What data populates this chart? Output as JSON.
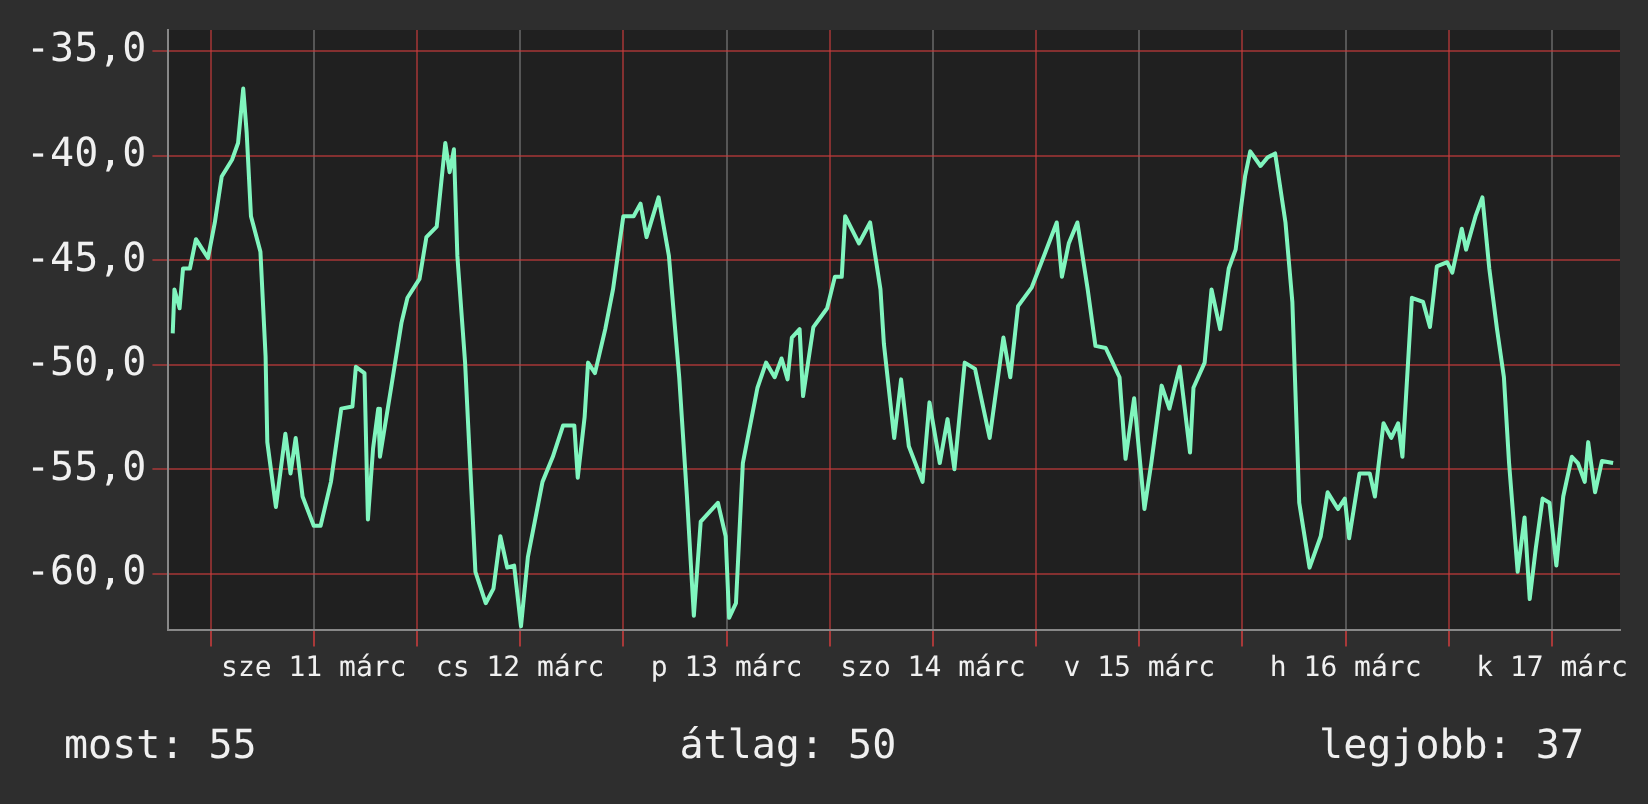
{
  "chart_data": {
    "type": "line",
    "x": [
      "--03-10T19:36",
      "--03-10T19:48",
      "--03-10T20:24",
      "--03-10T20:48",
      "--03-10T21:36",
      "--03-10T22:18",
      "--03-10T23:42",
      "--03-11T00:30",
      "--03-11T01:18",
      "--03-11T02:30",
      "--03-11T03:12",
      "--03-11T03:48",
      "--03-11T04:12",
      "--03-11T04:42",
      "--03-11T05:48",
      "--03-11T06:24",
      "--03-11T06:36",
      "--03-11T07:36",
      "--03-11T08:42",
      "--03-11T09:18",
      "--03-11T09:54",
      "--03-11T10:42",
      "--03-11T12:00",
      "--03-11T12:48",
      "--03-11T14:00",
      "--03-11T15:12",
      "--03-11T16:30",
      "--03-11T16:54",
      "--03-11T17:54",
      "--03-11T18:18",
      "--03-11T18:54",
      "--03-11T19:30",
      "--03-11T19:42",
      "--03-11T21:00",
      "--03-11T22:12",
      "--03-11T22:54",
      "--03-12T00:18",
      "--03-12T01:06",
      "--03-12T02:18",
      "--03-12T03:18",
      "--03-12T03:48",
      "--03-12T04:18",
      "--03-12T04:42",
      "--03-12T05:36",
      "--03-12T06:48",
      "--03-12T08:00",
      "--03-12T08:54",
      "--03-12T09:42",
      "--03-12T10:30",
      "--03-12T11:18",
      "--03-12T12:06",
      "--03-12T12:54",
      "--03-12T14:36",
      "--03-12T15:48",
      "--03-12T17:00",
      "--03-12T18:18",
      "--03-12T18:42",
      "--03-12T19:30",
      "--03-12T19:54",
      "--03-12T20:42",
      "--03-12T21:54",
      "--03-12T22:48",
      "--03-13T00:00",
      "--03-13T01:12",
      "--03-13T02:00",
      "--03-13T02:42",
      "--03-13T04:06",
      "--03-13T05:18",
      "--03-13T06:30",
      "--03-13T07:24",
      "--03-13T08:12",
      "--03-13T09:00",
      "--03-13T11:00",
      "--03-13T11:54",
      "--03-13T12:18",
      "--03-13T13:06",
      "--03-13T13:54",
      "--03-13T15:36",
      "--03-13T16:36",
      "--03-13T17:36",
      "--03-13T18:24",
      "--03-13T19:06",
      "--03-13T19:36",
      "--03-13T20:30",
      "--03-13T20:54",
      "--03-13T22:06",
      "--03-13T23:42",
      "--03-14T00:36",
      "--03-14T01:24",
      "--03-14T01:48",
      "--03-14T03:24",
      "--03-14T04:42",
      "--03-14T05:54",
      "--03-14T06:18",
      "--03-14T07:06",
      "--03-14T07:30",
      "--03-14T08:18",
      "--03-14T09:12",
      "--03-14T10:48",
      "--03-14T11:36",
      "--03-14T12:48",
      "--03-14T13:42",
      "--03-14T14:30",
      "--03-14T15:42",
      "--03-14T16:54",
      "--03-14T18:36",
      "--03-14T20:12",
      "--03-14T21:00",
      "--03-14T21:54",
      "--03-14T23:30",
      "--03-15T01:06",
      "--03-15T02:24",
      "--03-15T03:00",
      "--03-15T03:48",
      "--03-15T04:48",
      "--03-15T06:00",
      "--03-15T06:54",
      "--03-15T08:06",
      "--03-15T08:54",
      "--03-15T09:42",
      "--03-15T10:24",
      "--03-15T11:24",
      "--03-15T12:36",
      "--03-15T13:24",
      "--03-15T14:36",
      "--03-15T15:30",
      "--03-15T16:42",
      "--03-15T17:54",
      "--03-15T18:18",
      "--03-15T19:36",
      "--03-15T20:24",
      "--03-15T21:24",
      "--03-15T22:24",
      "--03-15T23:12",
      "--03-15T23:42",
      "--03-16T00:18",
      "--03-16T00:54",
      "--03-16T02:06",
      "--03-16T02:54",
      "--03-16T03:48",
      "--03-16T05:00",
      "--03-16T05:48",
      "--03-16T06:36",
      "--03-16T07:48",
      "--03-16T09:06",
      "--03-16T09:54",
      "--03-16T11:06",
      "--03-16T11:54",
      "--03-16T12:24",
      "--03-16T13:36",
      "--03-16T14:48",
      "--03-16T15:24",
      "--03-16T16:24",
      "--03-16T17:18",
      "--03-16T18:06",
      "--03-16T18:36",
      "--03-16T19:42",
      "--03-16T21:00",
      "--03-16T21:48",
      "--03-16T22:36",
      "--03-16T23:48",
      "--03-17T00:24",
      "--03-17T01:30",
      "--03-17T02:00",
      "--03-17T03:06",
      "--03-17T03:54",
      "--03-17T04:42",
      "--03-17T05:36",
      "--03-17T06:24",
      "--03-17T07:00",
      "--03-17T08:00",
      "--03-17T08:48",
      "--03-17T09:24",
      "--03-17T10:06",
      "--03-17T10:54",
      "--03-17T11:42",
      "--03-17T12:30",
      "--03-17T13:18",
      "--03-17T14:18",
      "--03-17T15:00",
      "--03-17T15:48",
      "--03-17T16:12",
      "--03-17T17:00",
      "--03-17T17:48",
      "--03-17T19:06"
    ],
    "series": [
      {
        "color": "#80f5be",
        "values": [
          -48.5,
          -46.4,
          -47.3,
          -45.4,
          -45.4,
          -44.0,
          -44.9,
          -43.2,
          -41.0,
          -40.2,
          -39.4,
          -36.8,
          -38.9,
          -42.9,
          -44.6,
          -49.6,
          -53.7,
          -56.8,
          -53.3,
          -55.2,
          -53.5,
          -56.3,
          -57.7,
          -57.7,
          -55.6,
          -52.1,
          -52.0,
          -50.1,
          -50.4,
          -57.4,
          -54.0,
          -52.1,
          -54.4,
          -51.1,
          -48.0,
          -46.8,
          -45.9,
          -43.9,
          -43.4,
          -39.4,
          -40.8,
          -39.7,
          -44.8,
          -49.9,
          -59.9,
          -61.4,
          -60.7,
          -58.2,
          -59.7,
          -59.6,
          -62.5,
          -59.2,
          -55.6,
          -54.4,
          -52.9,
          -52.9,
          -55.4,
          -52.5,
          -49.9,
          -50.4,
          -48.3,
          -46.4,
          -42.9,
          -42.9,
          -42.3,
          -43.9,
          -42.0,
          -44.8,
          -50.6,
          -56.3,
          -62.0,
          -57.5,
          -56.6,
          -58.2,
          -62.1,
          -61.4,
          -54.7,
          -51.1,
          -49.9,
          -50.6,
          -49.7,
          -50.7,
          -48.7,
          -48.3,
          -51.5,
          -48.2,
          -47.3,
          -45.8,
          -45.8,
          -42.9,
          -44.2,
          -43.2,
          -46.4,
          -49.0,
          -52.0,
          -53.5,
          -50.7,
          -53.9,
          -55.6,
          -51.8,
          -54.7,
          -52.6,
          -55.0,
          -49.9,
          -50.2,
          -53.5,
          -48.7,
          -50.6,
          -47.2,
          -46.3,
          -44.6,
          -43.2,
          -45.8,
          -44.2,
          -43.2,
          -46.4,
          -49.1,
          -49.2,
          -49.9,
          -50.6,
          -54.5,
          -51.6,
          -56.9,
          -54.7,
          -51.0,
          -52.1,
          -50.1,
          -54.2,
          -51.1,
          -49.9,
          -46.4,
          -48.3,
          -45.4,
          -44.5,
          -42.9,
          -41.0,
          -39.8,
          -40.5,
          -40.1,
          -39.9,
          -43.2,
          -47.0,
          -56.6,
          -59.7,
          -58.2,
          -56.1,
          -56.9,
          -56.4,
          -58.3,
          -55.2,
          -55.2,
          -56.3,
          -52.8,
          -53.5,
          -52.8,
          -54.4,
          -46.8,
          -47.0,
          -48.2,
          -45.3,
          -45.1,
          -45.6,
          -43.5,
          -44.5,
          -42.9,
          -42.0,
          -45.4,
          -48.3,
          -50.6,
          -54.7,
          -59.9,
          -57.3,
          -61.2,
          -58.8,
          -56.4,
          -56.6,
          -59.6,
          -56.3,
          -54.4,
          -54.7,
          -55.6,
          -53.7,
          -56.1,
          -54.6,
          -54.7
        ]
      }
    ],
    "xlim": [
      "--03-10T19:06",
      "--03-17T19:54"
    ],
    "xticks": [
      {
        "value": "--03-11T00:00",
        "label": null
      },
      {
        "value": "--03-11T12:00",
        "label": "sze 11 márc"
      },
      {
        "value": "--03-12T00:00",
        "label": null
      },
      {
        "value": "--03-12T12:00",
        "label": "cs 12 márc"
      },
      {
        "value": "--03-13T00:00",
        "label": null
      },
      {
        "value": "--03-13T12:00",
        "label": "p 13 márc"
      },
      {
        "value": "--03-14T00:00",
        "label": null
      },
      {
        "value": "--03-14T12:00",
        "label": "szo 14 márc"
      },
      {
        "value": "--03-15T00:00",
        "label": null
      },
      {
        "value": "--03-15T12:00",
        "label": "v 15 márc"
      },
      {
        "value": "--03-16T00:00",
        "label": null
      },
      {
        "value": "--03-16T12:00",
        "label": "h 16 márc"
      },
      {
        "value": "--03-17T00:00",
        "label": null
      },
      {
        "value": "--03-17T12:00",
        "label": "k 17 márc"
      }
    ],
    "ylim": [
      -62.7,
      -34
    ],
    "yticks": [
      {
        "value": -60,
        "label": "-60,0"
      },
      {
        "value": -55,
        "label": "-55,0"
      },
      {
        "value": -50,
        "label": "-50,0"
      },
      {
        "value": -45,
        "label": "-45,0"
      },
      {
        "value": -40,
        "label": "-40,0"
      },
      {
        "value": -35,
        "label": "-35,0"
      }
    ],
    "grid": true,
    "annotations": [
      "most: 55",
      "átlag: 50",
      "legjobb: 37"
    ]
  }
}
